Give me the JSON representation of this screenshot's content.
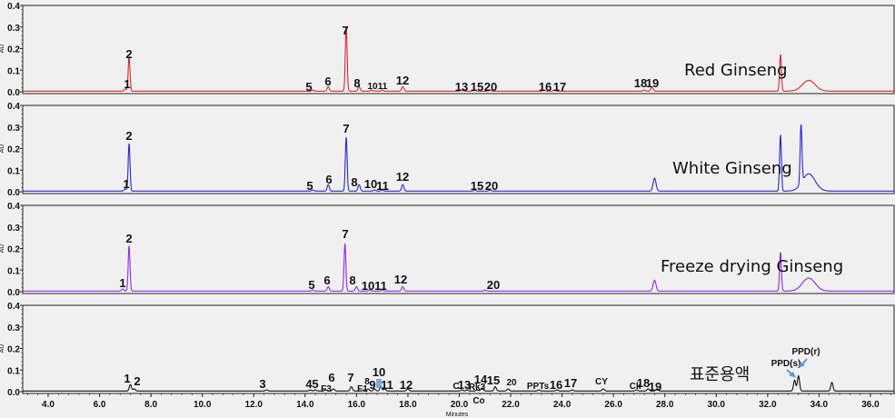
{
  "chart_data": {
    "type": "line",
    "title": "",
    "xlabel": "Minutes",
    "ylabel": "AU",
    "xlim": [
      3.0,
      37.0
    ],
    "ylim": [
      0.0,
      0.4
    ],
    "x_ticks": [
      "4.0",
      "6.0",
      "8.0",
      "10.0",
      "12.0",
      "14.0",
      "16.0",
      "18.0",
      "20.0",
      "22.0",
      "24.0",
      "26.0",
      "28.0",
      "30.0",
      "32.0",
      "34.0",
      "36.0"
    ],
    "y_ticks": [
      "0.0",
      "0.1",
      "0.2",
      "0.3",
      "0.4"
    ],
    "grid": false,
    "panels": [
      {
        "name": "Red Ginseng",
        "color": "#d42a2a",
        "peaks": [
          {
            "label": "1",
            "x": 7.0,
            "y": 0.01
          },
          {
            "label": "2",
            "x": 7.15,
            "y": 0.16
          },
          {
            "label": "5",
            "x": 14.3,
            "y": 0.005
          },
          {
            "label": "6",
            "x": 14.9,
            "y": 0.02
          },
          {
            "label": "7",
            "x": 15.6,
            "y": 0.3
          },
          {
            "label": "8",
            "x": 16.1,
            "y": 0.02
          },
          {
            "label": "10",
            "x": 16.6,
            "y": 0.005
          },
          {
            "label": "11",
            "x": 17.0,
            "y": 0.005
          },
          {
            "label": "12",
            "x": 17.8,
            "y": 0.02
          },
          {
            "label": "13",
            "x": 20.1,
            "y": 0.005
          },
          {
            "label": "15",
            "x": 20.6,
            "y": 0.005
          },
          {
            "label": "20",
            "x": 21.2,
            "y": 0.005
          },
          {
            "label": "16",
            "x": 23.3,
            "y": 0.005
          },
          {
            "label": "17",
            "x": 23.7,
            "y": 0.005
          },
          {
            "label": "18",
            "x": 27.2,
            "y": 0.005
          },
          {
            "label": "19",
            "x": 27.5,
            "y": 0.02
          },
          {
            "label": "",
            "x": 32.5,
            "y": 0.17
          },
          {
            "label": "",
            "x": 33.6,
            "y": 0.05
          }
        ]
      },
      {
        "name": "White Ginseng",
        "color": "#2828c8",
        "peaks": [
          {
            "label": "1",
            "x": 7.0,
            "y": 0.01
          },
          {
            "label": "2",
            "x": 7.15,
            "y": 0.22
          },
          {
            "label": "5",
            "x": 14.3,
            "y": 0.005
          },
          {
            "label": "6",
            "x": 14.9,
            "y": 0.03
          },
          {
            "label": "7",
            "x": 15.6,
            "y": 0.25
          },
          {
            "label": "8",
            "x": 16.1,
            "y": 0.03
          },
          {
            "label": "10",
            "x": 16.7,
            "y": 0.005
          },
          {
            "label": "11",
            "x": 17.0,
            "y": 0.005
          },
          {
            "label": "12",
            "x": 17.8,
            "y": 0.03
          },
          {
            "label": "15",
            "x": 20.6,
            "y": 0.005
          },
          {
            "label": "20",
            "x": 21.2,
            "y": 0.005
          },
          {
            "label": "",
            "x": 27.6,
            "y": 0.06
          },
          {
            "label": "",
            "x": 32.5,
            "y": 0.26
          },
          {
            "label": "",
            "x": 33.3,
            "y": 0.27
          },
          {
            "label": "",
            "x": 33.6,
            "y": 0.08
          }
        ]
      },
      {
        "name": "Freeze drying Ginseng",
        "color": "#8a2be2",
        "peaks": [
          {
            "label": "1",
            "x": 6.9,
            "y": 0.01
          },
          {
            "label": "2",
            "x": 7.15,
            "y": 0.21
          },
          {
            "label": "5",
            "x": 14.3,
            "y": 0.005
          },
          {
            "label": "6",
            "x": 14.9,
            "y": 0.02
          },
          {
            "label": "7",
            "x": 15.55,
            "y": 0.22
          },
          {
            "label": "8",
            "x": 16.0,
            "y": 0.02
          },
          {
            "label": "10",
            "x": 16.5,
            "y": 0.005
          },
          {
            "label": "11",
            "x": 17.0,
            "y": 0.005
          },
          {
            "label": "12",
            "x": 17.8,
            "y": 0.02
          },
          {
            "label": "20",
            "x": 21.0,
            "y": 0.005
          },
          {
            "label": "",
            "x": 27.6,
            "y": 0.05
          },
          {
            "label": "",
            "x": 32.5,
            "y": 0.18
          },
          {
            "label": "",
            "x": 33.6,
            "y": 0.06
          }
        ]
      },
      {
        "name": "표준용액",
        "color": "#111111",
        "peaks": [
          {
            "label": "1",
            "x": 7.2,
            "y": 0.03
          },
          {
            "label": "2",
            "x": 7.35,
            "y": 0.01
          },
          {
            "label": "3",
            "x": 12.5,
            "y": 0.005
          },
          {
            "label": "4",
            "x": 14.2,
            "y": 0.005
          },
          {
            "label": "5",
            "x": 14.4,
            "y": 0.005
          },
          {
            "label": "F3",
            "x": 14.8,
            "y": 0.005
          },
          {
            "label": "6",
            "x": 15.1,
            "y": 0.01
          },
          {
            "label": "7",
            "x": 15.8,
            "y": 0.02
          },
          {
            "label": "F1",
            "x": 16.3,
            "y": 0.005
          },
          {
            "label": "8",
            "x": 16.45,
            "y": 0.01
          },
          {
            "label": "9",
            "x": 16.7,
            "y": 0.01
          },
          {
            "label": "10",
            "x": 16.95,
            "y": 0.02
          },
          {
            "label": "11",
            "x": 17.1,
            "y": 0.01
          },
          {
            "label": "12",
            "x": 18.0,
            "y": 0.01
          },
          {
            "label": "C",
            "x": 20.1,
            "y": 0.005
          },
          {
            "label": "13",
            "x": 20.3,
            "y": 0.005
          },
          {
            "label": "Rk3",
            "x": 20.7,
            "y": 0.005
          },
          {
            "label": "14",
            "x": 20.9,
            "y": 0.01
          },
          {
            "label": "Co",
            "x": 20.85,
            "y": 0.005
          },
          {
            "label": "15",
            "x": 21.4,
            "y": 0.02
          },
          {
            "label": "20",
            "x": 21.9,
            "y": 0.01
          },
          {
            "label": "PPTs",
            "x": 23.1,
            "y": 0.005
          },
          {
            "label": "16",
            "x": 23.8,
            "y": 0.005
          },
          {
            "label": "17",
            "x": 24.4,
            "y": 0.005
          },
          {
            "label": "CY",
            "x": 25.6,
            "y": 0.01
          },
          {
            "label": "Ck",
            "x": 26.9,
            "y": 0.005
          },
          {
            "label": "18",
            "x": 27.35,
            "y": 0.01
          },
          {
            "label": "19",
            "x": 27.7,
            "y": 0.01
          },
          {
            "label": "PPD(s)",
            "x": 33.05,
            "y": 0.05
          },
          {
            "label": "PPD(r)",
            "x": 33.2,
            "y": 0.07
          },
          {
            "label": "",
            "x": 34.5,
            "y": 0.04
          }
        ]
      }
    ]
  },
  "labels": {
    "red": "Red Ginseng",
    "white": "White Ginseng",
    "freeze": "Freeze drying Ginseng",
    "standard": "표준용액",
    "ppd_s": "PPD(s)",
    "ppd_r": "PPD(r)",
    "xlabel": "Minutes",
    "ylabel": "AU"
  },
  "arrow_color": "#5a9bd5"
}
